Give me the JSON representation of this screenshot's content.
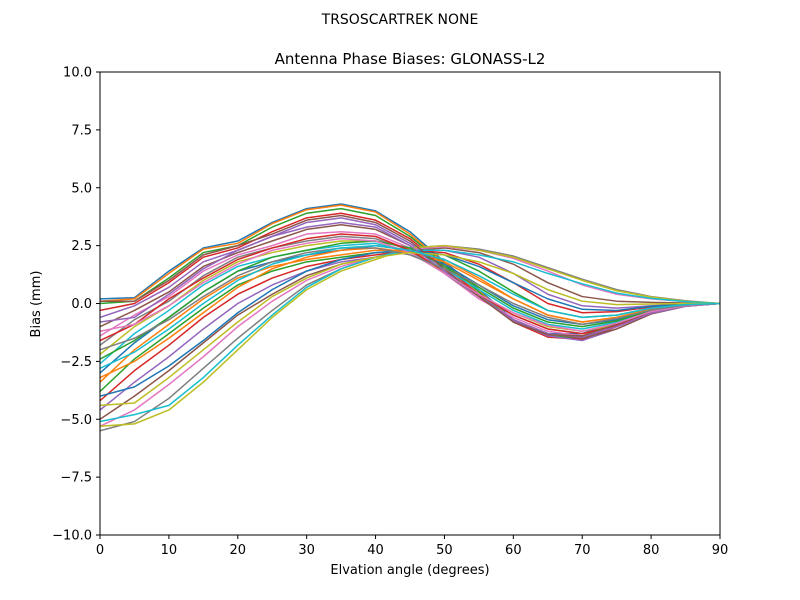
{
  "chart_data": {
    "type": "line",
    "suptitle": "TRSOSCARTREK    NONE",
    "title": "Antenna Phase Biases: GLONASS-L2",
    "xlabel": "Elvation angle (degrees)",
    "ylabel": "Bias (mm)",
    "xlim": [
      0,
      90
    ],
    "ylim": [
      -10,
      10
    ],
    "xticks": [
      0,
      10,
      20,
      30,
      40,
      50,
      60,
      70,
      80,
      90
    ],
    "xtick_labels": [
      "0",
      "10",
      "20",
      "30",
      "40",
      "50",
      "60",
      "70",
      "80",
      "90"
    ],
    "yticks": [
      -10,
      -7.5,
      -5,
      -2.5,
      0,
      2.5,
      5,
      7.5,
      10
    ],
    "ytick_labels": [
      "−10.0",
      "−7.5",
      "−5.0",
      "−2.5",
      "0.0",
      "2.5",
      "5.0",
      "7.5",
      "10.0"
    ],
    "grid": false,
    "legend": "none",
    "colors": [
      "#1f77b4",
      "#ff7f0e",
      "#2ca02c",
      "#d62728",
      "#9467bd",
      "#8c564b",
      "#e377c2",
      "#7f7f7f",
      "#bcbd22",
      "#17becf"
    ],
    "x": [
      0,
      5,
      10,
      15,
      20,
      25,
      30,
      35,
      40,
      45,
      50,
      55,
      60,
      65,
      70,
      75,
      80,
      85,
      90
    ],
    "series": [
      {
        "values": [
          0.2,
          0.25,
          1.4,
          2.4,
          2.7,
          3.5,
          4.1,
          4.3,
          4.0,
          3.1,
          1.8,
          0.6,
          -0.7,
          -1.3,
          -1.3,
          -0.8,
          -0.3,
          -0.1,
          0
        ]
      },
      {
        "values": [
          0.1,
          0.2,
          1.3,
          2.35,
          2.6,
          3.45,
          4.05,
          4.25,
          3.95,
          3.0,
          1.75,
          0.55,
          -0.75,
          -1.35,
          -1.4,
          -0.85,
          -0.3,
          -0.1,
          0
        ]
      },
      {
        "values": [
          0.0,
          0.1,
          1.1,
          2.2,
          2.5,
          3.3,
          3.9,
          4.1,
          3.8,
          2.9,
          1.7,
          0.5,
          -0.8,
          -1.4,
          -1.5,
          -0.9,
          -0.35,
          -0.1,
          0
        ]
      },
      {
        "values": [
          -0.3,
          0.0,
          0.9,
          2.0,
          2.4,
          3.1,
          3.7,
          3.9,
          3.6,
          2.8,
          1.6,
          0.4,
          -0.8,
          -1.45,
          -1.55,
          -1.0,
          -0.4,
          -0.1,
          0
        ]
      },
      {
        "values": [
          -0.6,
          -0.1,
          0.7,
          1.8,
          2.3,
          2.9,
          3.5,
          3.7,
          3.4,
          2.6,
          1.5,
          0.3,
          -0.75,
          -1.4,
          -1.6,
          -1.1,
          -0.45,
          -0.12,
          0
        ]
      },
      {
        "values": [
          -1.0,
          -0.3,
          0.5,
          1.6,
          2.2,
          2.7,
          3.2,
          3.4,
          3.2,
          2.5,
          1.4,
          0.3,
          -0.7,
          -1.3,
          -1.5,
          -1.1,
          -0.45,
          -0.12,
          0
        ]
      },
      {
        "values": [
          -1.4,
          -0.5,
          0.3,
          1.4,
          2.1,
          2.5,
          3.0,
          3.1,
          3.0,
          2.4,
          1.3,
          0.2,
          -0.6,
          -1.2,
          -1.4,
          -1.0,
          -0.4,
          -0.1,
          0
        ]
      },
      {
        "values": [
          -1.8,
          -0.7,
          0.1,
          1.2,
          2.0,
          2.4,
          2.7,
          2.9,
          2.8,
          2.3,
          1.3,
          0.3,
          -0.5,
          -1.1,
          -1.3,
          -0.95,
          -0.4,
          -0.1,
          0
        ]
      },
      {
        "values": [
          -2.2,
          -1.0,
          -0.1,
          1.0,
          1.8,
          2.2,
          2.5,
          2.7,
          2.7,
          2.2,
          1.4,
          0.4,
          -0.4,
          -1.0,
          -1.2,
          -0.9,
          -0.38,
          -0.1,
          0
        ]
      },
      {
        "values": [
          -2.6,
          -1.3,
          -0.3,
          0.8,
          1.6,
          2.0,
          2.3,
          2.5,
          2.6,
          2.2,
          1.5,
          0.6,
          -0.3,
          -0.9,
          -1.1,
          -0.8,
          -0.35,
          -0.1,
          0
        ]
      },
      {
        "values": [
          -3.0,
          -1.7,
          -0.6,
          0.5,
          1.4,
          1.8,
          2.1,
          2.3,
          2.5,
          2.3,
          1.7,
          0.8,
          -0.1,
          -0.7,
          -0.9,
          -0.7,
          -0.3,
          -0.08,
          0
        ]
      },
      {
        "values": [
          -3.4,
          -2.0,
          -0.9,
          0.2,
          1.1,
          1.6,
          1.9,
          2.1,
          2.3,
          2.3,
          1.9,
          1.1,
          0.2,
          -0.5,
          -0.8,
          -0.6,
          -0.25,
          -0.06,
          0
        ]
      },
      {
        "values": [
          -3.8,
          -2.4,
          -1.3,
          -0.2,
          0.8,
          1.4,
          1.8,
          2.0,
          2.2,
          2.3,
          2.1,
          1.4,
          0.5,
          -0.3,
          -0.6,
          -0.5,
          -0.2,
          -0.05,
          0
        ]
      },
      {
        "values": [
          -4.2,
          -2.9,
          -1.8,
          -0.6,
          0.4,
          1.1,
          1.6,
          1.9,
          2.1,
          2.3,
          2.2,
          1.7,
          0.9,
          0.0,
          -0.4,
          -0.35,
          -0.15,
          -0.04,
          0
        ]
      },
      {
        "values": [
          -4.6,
          -3.4,
          -2.3,
          -1.1,
          0.0,
          0.8,
          1.4,
          1.8,
          2.0,
          2.3,
          2.3,
          2.0,
          1.3,
          0.4,
          -0.1,
          -0.2,
          -0.1,
          -0.02,
          0
        ]
      },
      {
        "values": [
          -5.0,
          -4.0,
          -2.9,
          -1.7,
          -0.5,
          0.4,
          1.2,
          1.7,
          2.0,
          2.3,
          2.4,
          2.2,
          1.7,
          0.9,
          0.3,
          0.1,
          0.05,
          0.02,
          0
        ]
      },
      {
        "values": [
          -5.3,
          -4.6,
          -3.5,
          -2.3,
          -1.0,
          0.1,
          1.0,
          1.6,
          2.0,
          2.35,
          2.45,
          2.3,
          1.95,
          1.4,
          0.8,
          0.4,
          0.2,
          0.08,
          0
        ]
      },
      {
        "values": [
          -5.5,
          -5.1,
          -4.1,
          -2.8,
          -1.5,
          -0.3,
          0.8,
          1.5,
          2.0,
          2.4,
          2.5,
          2.35,
          2.05,
          1.55,
          1.05,
          0.6,
          0.3,
          0.12,
          0
        ]
      },
      {
        "values": [
          -5.3,
          -5.2,
          -4.6,
          -3.4,
          -2.0,
          -0.6,
          0.6,
          1.4,
          1.9,
          2.4,
          2.5,
          2.3,
          2.0,
          1.5,
          1.0,
          0.55,
          0.28,
          0.1,
          0
        ]
      },
      {
        "values": [
          -5.1,
          -4.8,
          -4.4,
          -3.2,
          -1.8,
          -0.5,
          0.7,
          1.5,
          2.0,
          2.3,
          2.3,
          2.1,
          1.8,
          1.3,
          0.85,
          0.45,
          0.22,
          0.08,
          0
        ]
      },
      {
        "values": [
          -4.0,
          -3.6,
          -2.7,
          -1.6,
          -0.4,
          0.6,
          1.4,
          1.9,
          2.2,
          2.3,
          2.1,
          1.6,
          0.9,
          0.2,
          -0.25,
          -0.3,
          -0.12,
          -0.03,
          0
        ]
      },
      {
        "values": [
          -3.2,
          -2.5,
          -1.5,
          -0.4,
          0.7,
          1.5,
          2.0,
          2.3,
          2.4,
          2.2,
          1.8,
          1.0,
          0.2,
          -0.5,
          -0.8,
          -0.6,
          -0.25,
          -0.06,
          0
        ]
      },
      {
        "values": [
          -2.4,
          -1.6,
          -0.6,
          0.5,
          1.4,
          2.0,
          2.3,
          2.6,
          2.7,
          2.4,
          1.6,
          0.7,
          -0.2,
          -0.8,
          -1.0,
          -0.75,
          -0.3,
          -0.08,
          0
        ]
      },
      {
        "values": [
          -1.6,
          -0.9,
          0.2,
          1.1,
          1.9,
          2.4,
          2.8,
          3.0,
          2.9,
          2.3,
          1.4,
          0.4,
          -0.5,
          -1.1,
          -1.3,
          -0.95,
          -0.4,
          -0.1,
          0
        ]
      },
      {
        "values": [
          -0.8,
          -0.6,
          0.4,
          1.5,
          2.3,
          2.9,
          3.3,
          3.5,
          3.3,
          2.5,
          1.4,
          0.3,
          -0.7,
          -1.3,
          -1.45,
          -1.0,
          -0.42,
          -0.12,
          0
        ]
      },
      {
        "values": [
          0.1,
          0.1,
          1.0,
          2.1,
          2.5,
          3.0,
          3.6,
          3.8,
          3.5,
          2.7,
          1.5,
          0.3,
          -0.8,
          -1.35,
          -1.4,
          -0.9,
          -0.35,
          -0.1,
          0
        ]
      },
      {
        "values": [
          -1.2,
          -0.9,
          -0.1,
          0.9,
          1.7,
          2.3,
          2.6,
          2.8,
          2.7,
          2.2,
          1.3,
          0.4,
          -0.4,
          -0.95,
          -1.2,
          -0.85,
          -0.35,
          -0.1,
          0
        ]
      },
      {
        "values": [
          -2.0,
          -1.5,
          -0.7,
          0.3,
          1.2,
          1.8,
          2.2,
          2.4,
          2.4,
          2.1,
          1.5,
          0.8,
          0.0,
          -0.6,
          -0.9,
          -0.65,
          -0.28,
          -0.07,
          0
        ]
      },
      {
        "values": [
          -4.4,
          -4.3,
          -3.2,
          -2.0,
          -0.8,
          0.3,
          1.1,
          1.7,
          2.0,
          2.2,
          2.1,
          1.8,
          1.3,
          0.6,
          0.1,
          -0.05,
          -0.02,
          0.0,
          0
        ]
      },
      {
        "values": [
          -2.8,
          -2.1,
          -1.1,
          0.0,
          1.0,
          1.7,
          2.1,
          2.4,
          2.5,
          2.3,
          1.9,
          1.2,
          0.4,
          -0.3,
          -0.6,
          -0.5,
          -0.2,
          -0.05,
          0
        ]
      }
    ]
  }
}
